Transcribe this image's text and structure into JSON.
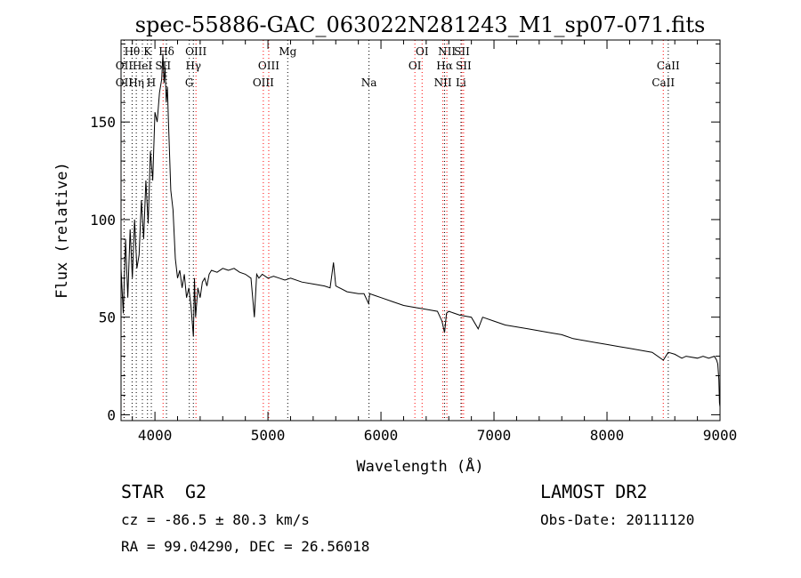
{
  "chart_data": {
    "type": "line",
    "title": "spec-55886-GAC_063022N281243_M1_sp07-071.fits",
    "xlabel": "Wavelength (Å)",
    "ylabel": "Flux (relative)",
    "xlim": [
      3700,
      9000
    ],
    "ylim": [
      -3,
      192
    ],
    "x_ticks": [
      4000,
      5000,
      6000,
      7000,
      8000,
      9000
    ],
    "y_ticks": [
      0,
      50,
      100,
      150
    ],
    "grid": false,
    "line_color": "#000000",
    "marker_colors": {
      "emission": "#ff0000",
      "absorption": "#000000"
    },
    "line_markers": [
      {
        "label": "Hθ",
        "wavelength": 3798,
        "row": 1,
        "kind": "absorption"
      },
      {
        "label": "K",
        "wavelength": 3934,
        "row": 1,
        "kind": "absorption"
      },
      {
        "label": "Hδ",
        "wavelength": 4102,
        "row": 1,
        "kind": "absorption"
      },
      {
        "label": "OII",
        "wavelength": 3727,
        "row": 2,
        "kind": "emission"
      },
      {
        "label": "HeI",
        "wavelength": 3889,
        "row": 2,
        "kind": "absorption"
      },
      {
        "label": "SII",
        "wavelength": 4072,
        "row": 2,
        "kind": "emission"
      },
      {
        "label": "OII",
        "wavelength": 3727,
        "row": 3,
        "kind": "absorption"
      },
      {
        "label": "Hη",
        "wavelength": 3835,
        "row": 3,
        "kind": "absorption"
      },
      {
        "label": "H",
        "wavelength": 3968,
        "row": 3,
        "kind": "absorption"
      },
      {
        "label": "OIII",
        "wavelength": 4363,
        "row": 1,
        "kind": "emission"
      },
      {
        "label": "Hγ",
        "wavelength": 4340,
        "row": 2,
        "kind": "absorption"
      },
      {
        "label": "G",
        "wavelength": 4304,
        "row": 3,
        "kind": "absorption"
      },
      {
        "label": "Mg",
        "wavelength": 5175,
        "row": 1,
        "kind": "absorption"
      },
      {
        "label": "OIII",
        "wavelength": 5007,
        "row": 2,
        "kind": "emission"
      },
      {
        "label": "OIII",
        "wavelength": 4959,
        "row": 3,
        "kind": "emission"
      },
      {
        "label": "Na",
        "wavelength": 5894,
        "row": 3,
        "kind": "absorption"
      },
      {
        "label": "OI",
        "wavelength": 6364,
        "row": 1,
        "kind": "emission"
      },
      {
        "label": "OI",
        "wavelength": 6300,
        "row": 2,
        "kind": "emission"
      },
      {
        "label": "NII",
        "wavelength": 6583,
        "row": 1,
        "kind": "emission"
      },
      {
        "label": "SII",
        "wavelength": 6716,
        "row": 1,
        "kind": "emission"
      },
      {
        "label": "Hα",
        "wavelength": 6563,
        "row": 2,
        "kind": "absorption"
      },
      {
        "label": "SII",
        "wavelength": 6731,
        "row": 2,
        "kind": "emission"
      },
      {
        "label": "NII",
        "wavelength": 6548,
        "row": 3,
        "kind": "emission"
      },
      {
        "label": "Li",
        "wavelength": 6708,
        "row": 3,
        "kind": "absorption"
      },
      {
        "label": "CaII",
        "wavelength": 8542,
        "row": 2,
        "kind": "absorption"
      },
      {
        "label": "CaII",
        "wavelength": 8498,
        "row": 3,
        "kind": "emission"
      }
    ],
    "series": [
      {
        "x": [
          3700,
          3720,
          3740,
          3760,
          3780,
          3800,
          3820,
          3840,
          3860,
          3880,
          3900,
          3920,
          3940,
          3960,
          3980,
          4000,
          4020,
          4040,
          4060,
          4070,
          4080,
          4090,
          4100,
          4110,
          4120,
          4140,
          4160,
          4180,
          4200,
          4220,
          4240,
          4260,
          4280,
          4300,
          4320,
          4340,
          4350,
          4360,
          4380,
          4400,
          4420,
          4440,
          4460,
          4480,
          4500,
          4550,
          4600,
          4650,
          4700,
          4750,
          4800,
          4850,
          4880,
          4900,
          4920,
          4950,
          5000,
          5050,
          5100,
          5150,
          5200,
          5300,
          5400,
          5500,
          5550,
          5580,
          5600,
          5700,
          5800,
          5850,
          5890,
          5900,
          5950,
          6000,
          6100,
          6200,
          6300,
          6400,
          6500,
          6540,
          6563,
          6580,
          6600,
          6700,
          6800,
          6860,
          6900,
          7000,
          7100,
          7200,
          7300,
          7400,
          7500,
          7600,
          7700,
          7800,
          7900,
          8000,
          8100,
          8200,
          8300,
          8400,
          8498,
          8542,
          8600,
          8662,
          8700,
          8800,
          8850,
          8900,
          8950,
          8970,
          8980,
          8990,
          8995,
          9000
        ],
        "y": [
          75,
          52,
          90,
          60,
          95,
          70,
          100,
          75,
          82,
          110,
          90,
          120,
          98,
          135,
          120,
          155,
          150,
          165,
          172,
          185,
          170,
          178,
          160,
          168,
          150,
          115,
          105,
          80,
          70,
          74,
          65,
          72,
          60,
          65,
          55,
          40,
          70,
          50,
          65,
          60,
          68,
          70,
          66,
          72,
          74,
          73,
          75,
          74,
          75,
          73,
          72,
          70,
          50,
          72,
          70,
          72,
          70,
          71,
          70,
          69,
          70,
          68,
          67,
          66,
          65,
          78,
          66,
          63,
          62,
          62,
          57,
          62,
          61,
          60,
          58,
          56,
          55,
          54,
          53,
          48,
          42,
          52,
          53,
          51,
          50,
          44,
          50,
          48,
          46,
          45,
          44,
          43,
          42,
          41,
          39,
          38,
          37,
          36,
          35,
          34,
          33,
          32,
          28,
          32,
          31,
          29,
          30,
          29,
          30,
          29,
          30,
          28,
          26,
          18,
          6,
          4
        ]
      }
    ],
    "footer": {
      "object_class": "STAR",
      "subclass": "G2",
      "survey": "LAMOST DR2",
      "cz": "cz = -86.5 ± 80.3 km/s",
      "obs_date": "Obs-Date: 20111120",
      "coords": "RA =  99.04290, DEC =  26.56018"
    }
  }
}
